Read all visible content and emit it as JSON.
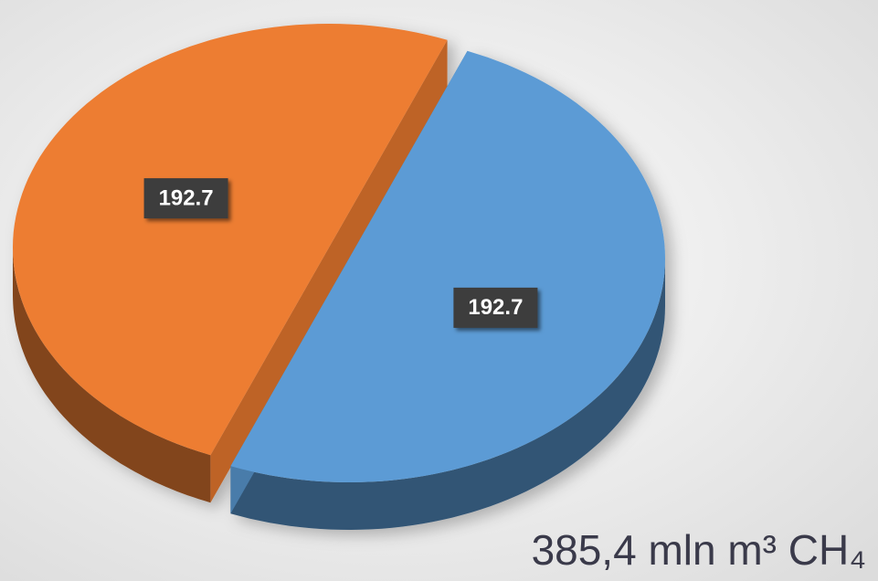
{
  "chart_data": {
    "type": "pie",
    "categories": [
      null,
      null
    ],
    "values": [
      192.7,
      192.7
    ],
    "colors": [
      "#5b9bd5",
      "#ed7d31"
    ],
    "annotation": "385,4 mln m³ CH₄"
  }
}
